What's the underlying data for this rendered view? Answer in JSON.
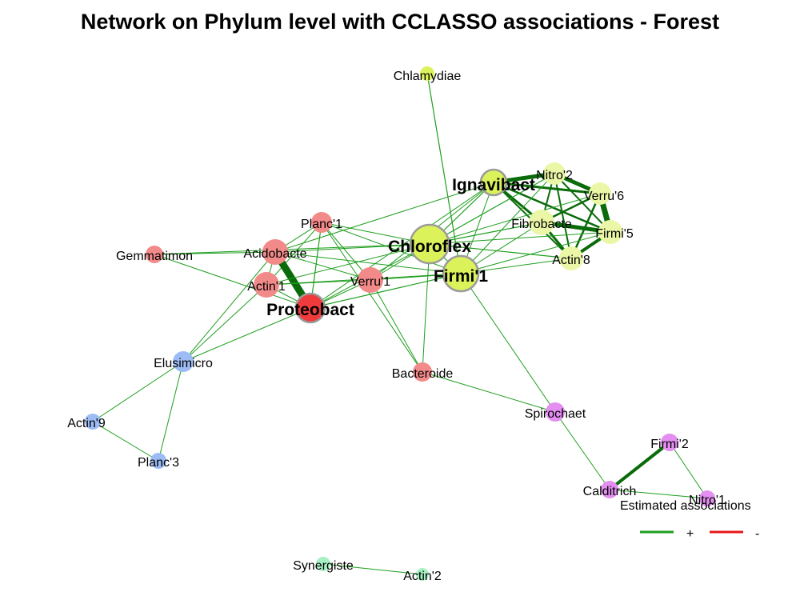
{
  "title": "Network on Phylum level with CCLASSO associations - Forest",
  "colors": {
    "positive": "#1e9e1e",
    "negative": "#e8161a",
    "strong_positive": "#0a6b0a",
    "node_border": "#9b9b9b"
  },
  "nodes": [
    {
      "id": "Chlamydiae",
      "label": "Chlamydiae",
      "group": "yellow",
      "hub": false
    },
    {
      "id": "Ignavibact",
      "label": "Ignavibact",
      "group": "yellow",
      "hub": true
    },
    {
      "id": "Nitro2",
      "label": "Nitro'2",
      "group": "yellow",
      "hub": false
    },
    {
      "id": "Verru6",
      "label": "Verru'6",
      "group": "yellow",
      "hub": false
    },
    {
      "id": "Fibrobacte",
      "label": "Fibrobacte",
      "group": "yellow",
      "hub": false
    },
    {
      "id": "Firmi5",
      "label": "Firmi'5",
      "group": "yellow",
      "hub": false
    },
    {
      "id": "Actin8",
      "label": "Actin'8",
      "group": "yellow",
      "hub": false
    },
    {
      "id": "Chloroflex",
      "label": "Chloroflex",
      "group": "yellow",
      "hub": true
    },
    {
      "id": "Firmi1",
      "label": "Firmi'1",
      "group": "yellow",
      "hub": true
    },
    {
      "id": "Planc1",
      "label": "Planc'1",
      "group": "red",
      "hub": false
    },
    {
      "id": "Gemmatimon",
      "label": "Gemmatimon",
      "group": "red",
      "hub": false
    },
    {
      "id": "Acidobacte",
      "label": "Acidobacte",
      "group": "red",
      "hub": false
    },
    {
      "id": "Actin1",
      "label": "Actin'1",
      "group": "red",
      "hub": false
    },
    {
      "id": "Verru1",
      "label": "Verru'1",
      "group": "red",
      "hub": false
    },
    {
      "id": "Proteobact",
      "label": "Proteobact",
      "group": "red-hub",
      "hub": true
    },
    {
      "id": "Bacteroide",
      "label": "Bacteroide",
      "group": "red",
      "hub": false
    },
    {
      "id": "Elusimicro",
      "label": "Elusimicro",
      "group": "blue",
      "hub": false
    },
    {
      "id": "Actin9",
      "label": "Actin'9",
      "group": "blue",
      "hub": false
    },
    {
      "id": "Planc3",
      "label": "Planc'3",
      "group": "blue",
      "hub": false
    },
    {
      "id": "Spirochaet",
      "label": "Spirochaet",
      "group": "purple",
      "hub": false
    },
    {
      "id": "Firmi2",
      "label": "Firmi'2",
      "group": "purple",
      "hub": false
    },
    {
      "id": "Calditrich",
      "label": "Calditrich",
      "group": "purple",
      "hub": false
    },
    {
      "id": "Nitro1",
      "label": "Nitro'1",
      "group": "purple",
      "hub": false
    },
    {
      "id": "Synergiste",
      "label": "Synergiste",
      "group": "mint",
      "hub": false
    },
    {
      "id": "Actin2",
      "label": "Actin'2",
      "group": "mint",
      "hub": false
    }
  ],
  "group_colors": {
    "yellow": "#dcf25a",
    "yellow-light": "#ebf7a6",
    "red": "#f28a8a",
    "red-hub": "#ef3b3b",
    "blue": "#9dbcf5",
    "purple": "#e38ef0",
    "mint": "#a7f0c4"
  },
  "legend": {
    "title": "Estimated associations",
    "positive_label": "+",
    "negative_label": "-"
  }
}
